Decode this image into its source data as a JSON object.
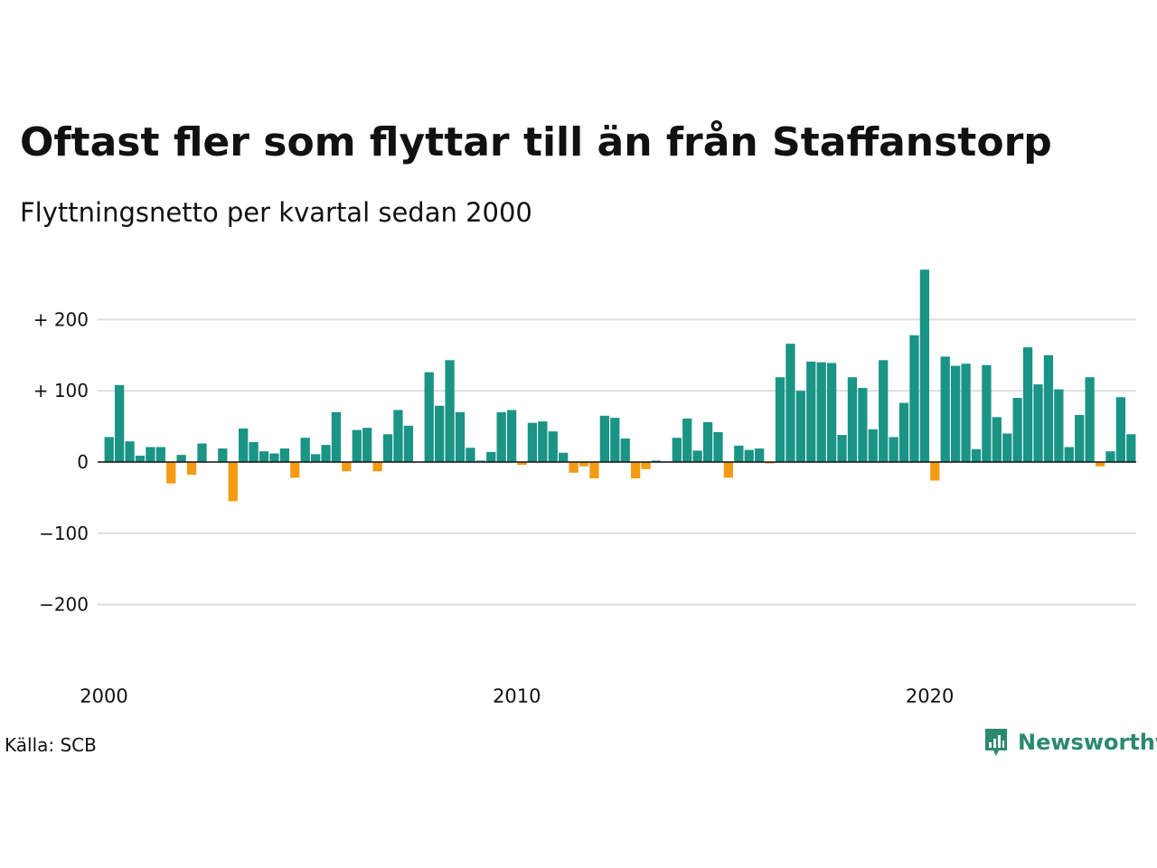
{
  "title": "Oftast fler som flyttar till än från Staffanstorp",
  "subtitle": "Flyttningsnetto per kvartal sedan 2000",
  "source": "Källa: SCB",
  "brand": "Newsworthy",
  "colors": {
    "positive": "#1a9485",
    "negative": "#f39c12",
    "grid": "#dddddd",
    "brand": "#2b8a6e"
  },
  "chart_data": {
    "type": "bar",
    "title": "Oftast fler som flyttar till än från Staffanstorp",
    "subtitle": "Flyttningsnetto per kvartal sedan 2000",
    "xlabel": "",
    "ylabel": "",
    "ylim": [
      -200,
      270
    ],
    "yticks": [
      200,
      100,
      0,
      -100,
      -200
    ],
    "ytick_labels": [
      "+ 200",
      "+ 100",
      "0",
      "−100",
      "−200"
    ],
    "xtick_labels": [
      "2000",
      "2010",
      "2020"
    ],
    "grid": true,
    "start": "2000 Q1",
    "values": [
      35,
      108,
      29,
      9,
      21,
      21,
      -30,
      10,
      -18,
      26,
      0,
      19,
      -55,
      47,
      28,
      15,
      12,
      19,
      -22,
      34,
      11,
      24,
      70,
      -13,
      45,
      48,
      -13,
      39,
      73,
      51,
      0,
      126,
      79,
      143,
      70,
      20,
      2,
      14,
      70,
      73,
      -4,
      55,
      57,
      43,
      13,
      -15,
      -6,
      -23,
      65,
      62,
      33,
      -23,
      -10,
      2,
      1,
      34,
      61,
      16,
      56,
      42,
      -22,
      23,
      17,
      19,
      -2,
      119,
      166,
      100,
      141,
      140,
      139,
      38,
      119,
      104,
      46,
      143,
      35,
      83,
      178,
      270,
      -26,
      148,
      135,
      138,
      18,
      136,
      63,
      40,
      90,
      161,
      109,
      150,
      102,
      21,
      66,
      119,
      -6,
      15,
      91,
      39
    ]
  }
}
